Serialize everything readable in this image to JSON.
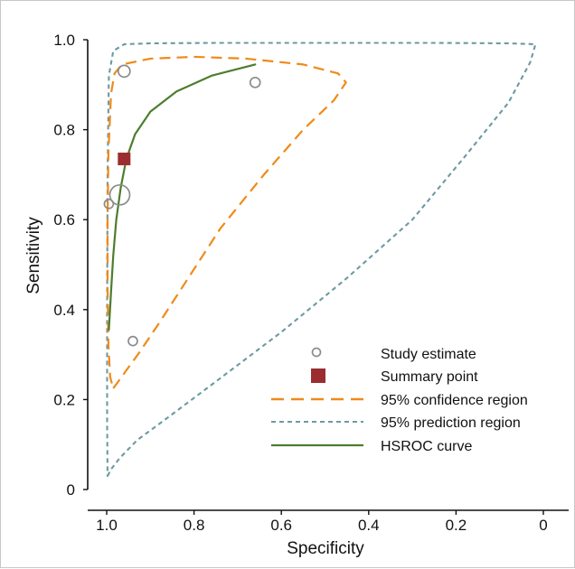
{
  "chart_data": {
    "type": "scatter",
    "title": "",
    "xlabel": "Specificity",
    "ylabel": "Sensitivity",
    "xlim": [
      1.0,
      0.0
    ],
    "ylim": [
      0.0,
      1.0
    ],
    "x_ticks": [
      "1.0",
      "0.8",
      "0.6",
      "0.4",
      "0.2",
      "0"
    ],
    "y_ticks": [
      "0",
      "0.2",
      "0.4",
      "0.6",
      "0.8",
      "1.0"
    ],
    "grid": false,
    "legend_position": "bottom-right",
    "legend": [
      {
        "label": "Study estimate",
        "style": "circle"
      },
      {
        "label": "Summary point",
        "style": "square"
      },
      {
        "label": "95% confidence region",
        "style": "long-dash"
      },
      {
        "label": "95% prediction region",
        "style": "short-dash"
      },
      {
        "label": "HSROC curve",
        "style": "solid"
      }
    ],
    "colors": {
      "study": "#8c8c8c",
      "summary": "#9b2d30",
      "confidence": "#ef8a1a",
      "prediction": "#6d9aa1",
      "hsroc": "#4d7d2f",
      "axis": "#111111"
    },
    "study_estimates": [
      {
        "specificity": 0.96,
        "sensitivity": 0.93,
        "weight": 1.3
      },
      {
        "specificity": 0.66,
        "sensitivity": 0.905,
        "weight": 1.1
      },
      {
        "specificity": 0.97,
        "sensitivity": 0.655,
        "weight": 2.2
      },
      {
        "specificity": 0.995,
        "sensitivity": 0.635,
        "weight": 1.0
      },
      {
        "specificity": 0.94,
        "sensitivity": 0.33,
        "weight": 1.0
      }
    ],
    "summary_point": {
      "specificity": 0.96,
      "sensitivity": 0.735
    },
    "hsroc_curve": [
      {
        "specificity": 0.995,
        "sensitivity": 0.355
      },
      {
        "specificity": 0.99,
        "sensitivity": 0.44
      },
      {
        "specificity": 0.985,
        "sensitivity": 0.52
      },
      {
        "specificity": 0.978,
        "sensitivity": 0.6
      },
      {
        "specificity": 0.968,
        "sensitivity": 0.67
      },
      {
        "specificity": 0.955,
        "sensitivity": 0.735
      },
      {
        "specificity": 0.935,
        "sensitivity": 0.79
      },
      {
        "specificity": 0.9,
        "sensitivity": 0.84
      },
      {
        "specificity": 0.84,
        "sensitivity": 0.885
      },
      {
        "specificity": 0.76,
        "sensitivity": 0.92
      },
      {
        "specificity": 0.66,
        "sensitivity": 0.945
      }
    ],
    "confidence_region": [
      {
        "specificity": 0.985,
        "sensitivity": 0.225
      },
      {
        "specificity": 0.975,
        "sensitivity": 0.238
      },
      {
        "specificity": 0.955,
        "sensitivity": 0.265
      },
      {
        "specificity": 0.925,
        "sensitivity": 0.305
      },
      {
        "specificity": 0.88,
        "sensitivity": 0.37
      },
      {
        "specificity": 0.82,
        "sensitivity": 0.46
      },
      {
        "specificity": 0.74,
        "sensitivity": 0.58
      },
      {
        "specificity": 0.64,
        "sensitivity": 0.7
      },
      {
        "specificity": 0.55,
        "sensitivity": 0.8
      },
      {
        "specificity": 0.48,
        "sensitivity": 0.865
      },
      {
        "specificity": 0.452,
        "sensitivity": 0.905
      },
      {
        "specificity": 0.47,
        "sensitivity": 0.925
      },
      {
        "specificity": 0.55,
        "sensitivity": 0.945
      },
      {
        "specificity": 0.68,
        "sensitivity": 0.958
      },
      {
        "specificity": 0.8,
        "sensitivity": 0.962
      },
      {
        "specificity": 0.9,
        "sensitivity": 0.958
      },
      {
        "specificity": 0.965,
        "sensitivity": 0.945
      },
      {
        "specificity": 0.982,
        "sensitivity": 0.925
      },
      {
        "specificity": 0.99,
        "sensitivity": 0.88
      },
      {
        "specificity": 0.996,
        "sensitivity": 0.75
      },
      {
        "specificity": 0.998,
        "sensitivity": 0.6
      },
      {
        "specificity": 0.998,
        "sensitivity": 0.45
      },
      {
        "specificity": 0.996,
        "sensitivity": 0.32
      },
      {
        "specificity": 0.992,
        "sensitivity": 0.25
      },
      {
        "specificity": 0.985,
        "sensitivity": 0.225
      }
    ],
    "prediction_region": [
      {
        "specificity": 0.998,
        "sensitivity": 0.03
      },
      {
        "specificity": 0.99,
        "sensitivity": 0.045
      },
      {
        "specificity": 0.97,
        "sensitivity": 0.07
      },
      {
        "specificity": 0.93,
        "sensitivity": 0.11
      },
      {
        "specificity": 0.86,
        "sensitivity": 0.16
      },
      {
        "specificity": 0.75,
        "sensitivity": 0.24
      },
      {
        "specificity": 0.6,
        "sensitivity": 0.35
      },
      {
        "specificity": 0.45,
        "sensitivity": 0.47
      },
      {
        "specificity": 0.3,
        "sensitivity": 0.6
      },
      {
        "specificity": 0.18,
        "sensitivity": 0.74
      },
      {
        "specificity": 0.08,
        "sensitivity": 0.86
      },
      {
        "specificity": 0.03,
        "sensitivity": 0.95
      },
      {
        "specificity": 0.018,
        "sensitivity": 0.99
      },
      {
        "specificity": 0.08,
        "sensitivity": 0.992
      },
      {
        "specificity": 0.25,
        "sensitivity": 0.993
      },
      {
        "specificity": 0.5,
        "sensitivity": 0.993
      },
      {
        "specificity": 0.75,
        "sensitivity": 0.993
      },
      {
        "specificity": 0.9,
        "sensitivity": 0.992
      },
      {
        "specificity": 0.96,
        "sensitivity": 0.99
      },
      {
        "specificity": 0.985,
        "sensitivity": 0.975
      },
      {
        "specificity": 0.995,
        "sensitivity": 0.92
      },
      {
        "specificity": 0.998,
        "sensitivity": 0.7
      },
      {
        "specificity": 0.999,
        "sensitivity": 0.4
      },
      {
        "specificity": 0.999,
        "sensitivity": 0.15
      },
      {
        "specificity": 0.998,
        "sensitivity": 0.03
      }
    ]
  }
}
